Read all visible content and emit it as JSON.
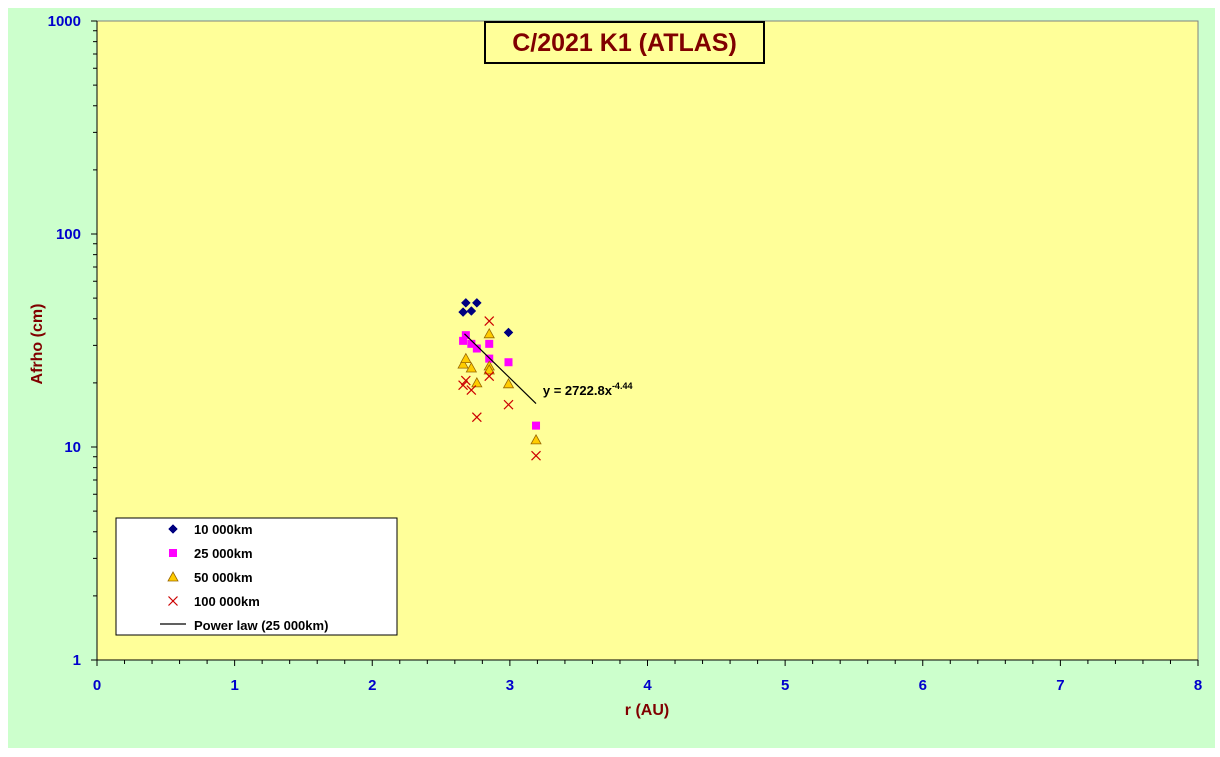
{
  "chart_data": {
    "type": "scatter",
    "title": "C/2021 K1 (ATLAS)",
    "xlabel": "r (AU)",
    "ylabel": "Afrho (cm)",
    "xlim": [
      0,
      8
    ],
    "ylim": [
      1,
      1000
    ],
    "yscale": "log",
    "x_ticks": [
      "0",
      "1",
      "2",
      "3",
      "4",
      "5",
      "6",
      "7",
      "8"
    ],
    "y_ticks": [
      "1",
      "10",
      "100",
      "1000"
    ],
    "grid": false,
    "legend_position": "bottom-left",
    "colors": {
      "outer_background": "#ccffcc",
      "plot_background": "#ffff99",
      "title_color": "#800000",
      "axis_label_color": "#800000",
      "tick_label_color": "#0000cc"
    },
    "series": [
      {
        "name": "10 000km",
        "marker": "diamond",
        "color": "#000080",
        "points": [
          [
            2.66,
            43
          ],
          [
            2.68,
            47.5
          ],
          [
            2.72,
            43.5
          ],
          [
            2.76,
            47.5
          ],
          [
            2.99,
            34.5
          ]
        ]
      },
      {
        "name": "25 000km",
        "marker": "square",
        "color": "#ff00ff",
        "points": [
          [
            2.66,
            31.5
          ],
          [
            2.68,
            33.5
          ],
          [
            2.72,
            30.5
          ],
          [
            2.76,
            29
          ],
          [
            2.85,
            30.5
          ],
          [
            2.85,
            26
          ],
          [
            2.99,
            25
          ],
          [
            3.19,
            12.6
          ]
        ]
      },
      {
        "name": "50 000km",
        "marker": "triangle",
        "color": "#ffcc00",
        "points": [
          [
            2.66,
            24.5
          ],
          [
            2.68,
            26
          ],
          [
            2.72,
            23.5
          ],
          [
            2.76,
            20
          ],
          [
            2.85,
            34
          ],
          [
            2.85,
            24
          ],
          [
            2.85,
            23
          ],
          [
            2.99,
            19.8
          ],
          [
            3.19,
            10.8
          ]
        ]
      },
      {
        "name": "100 000km",
        "marker": "cross",
        "color": "#cc0000",
        "points": [
          [
            2.66,
            19.5
          ],
          [
            2.68,
            20.5
          ],
          [
            2.72,
            18.5
          ],
          [
            2.76,
            13.8
          ],
          [
            2.85,
            39
          ],
          [
            2.85,
            21.5
          ],
          [
            2.99,
            15.8
          ],
          [
            3.19,
            9.1
          ]
        ]
      },
      {
        "name": "Power law (25 000km)",
        "type": "line",
        "color": "#000000",
        "points": [
          [
            2.67,
            34
          ],
          [
            3.19,
            16
          ]
        ]
      }
    ],
    "annotations": [
      {
        "text": "y = 2722.8x",
        "superscript": "-4.44",
        "x": 3.24,
        "y": 17.5
      }
    ]
  }
}
